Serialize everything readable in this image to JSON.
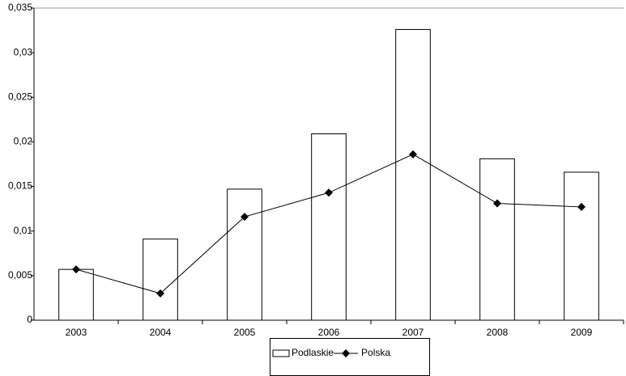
{
  "chart_data": {
    "type": "bar_line",
    "categories": [
      "2003",
      "2004",
      "2005",
      "2006",
      "2007",
      "2008",
      "2009"
    ],
    "series": [
      {
        "name": "Podlaskie",
        "type": "bar",
        "color": "#ffffff",
        "values": [
          0.0057,
          0.0091,
          0.0147,
          0.0209,
          0.0326,
          0.0181,
          0.0166
        ]
      },
      {
        "name": "Polska",
        "type": "line",
        "color": "#000000",
        "values": [
          0.0057,
          0.003,
          0.0116,
          0.0143,
          0.0186,
          0.0131,
          0.0127
        ]
      }
    ],
    "ylim": [
      0,
      0.035
    ],
    "yticks": [
      0,
      {
        "value": 0.005,
        "label": "0,005"
      },
      {
        "value": 0.01,
        "label": "0,01"
      },
      {
        "value": 0.015,
        "label": "0,015"
      },
      {
        "value": 0.02,
        "label": "0,02"
      },
      {
        "value": 0.025,
        "label": "0,025"
      },
      {
        "value": 0.03,
        "label": "0,03"
      },
      {
        "value": 0.035,
        "label": "0,035"
      }
    ]
  }
}
